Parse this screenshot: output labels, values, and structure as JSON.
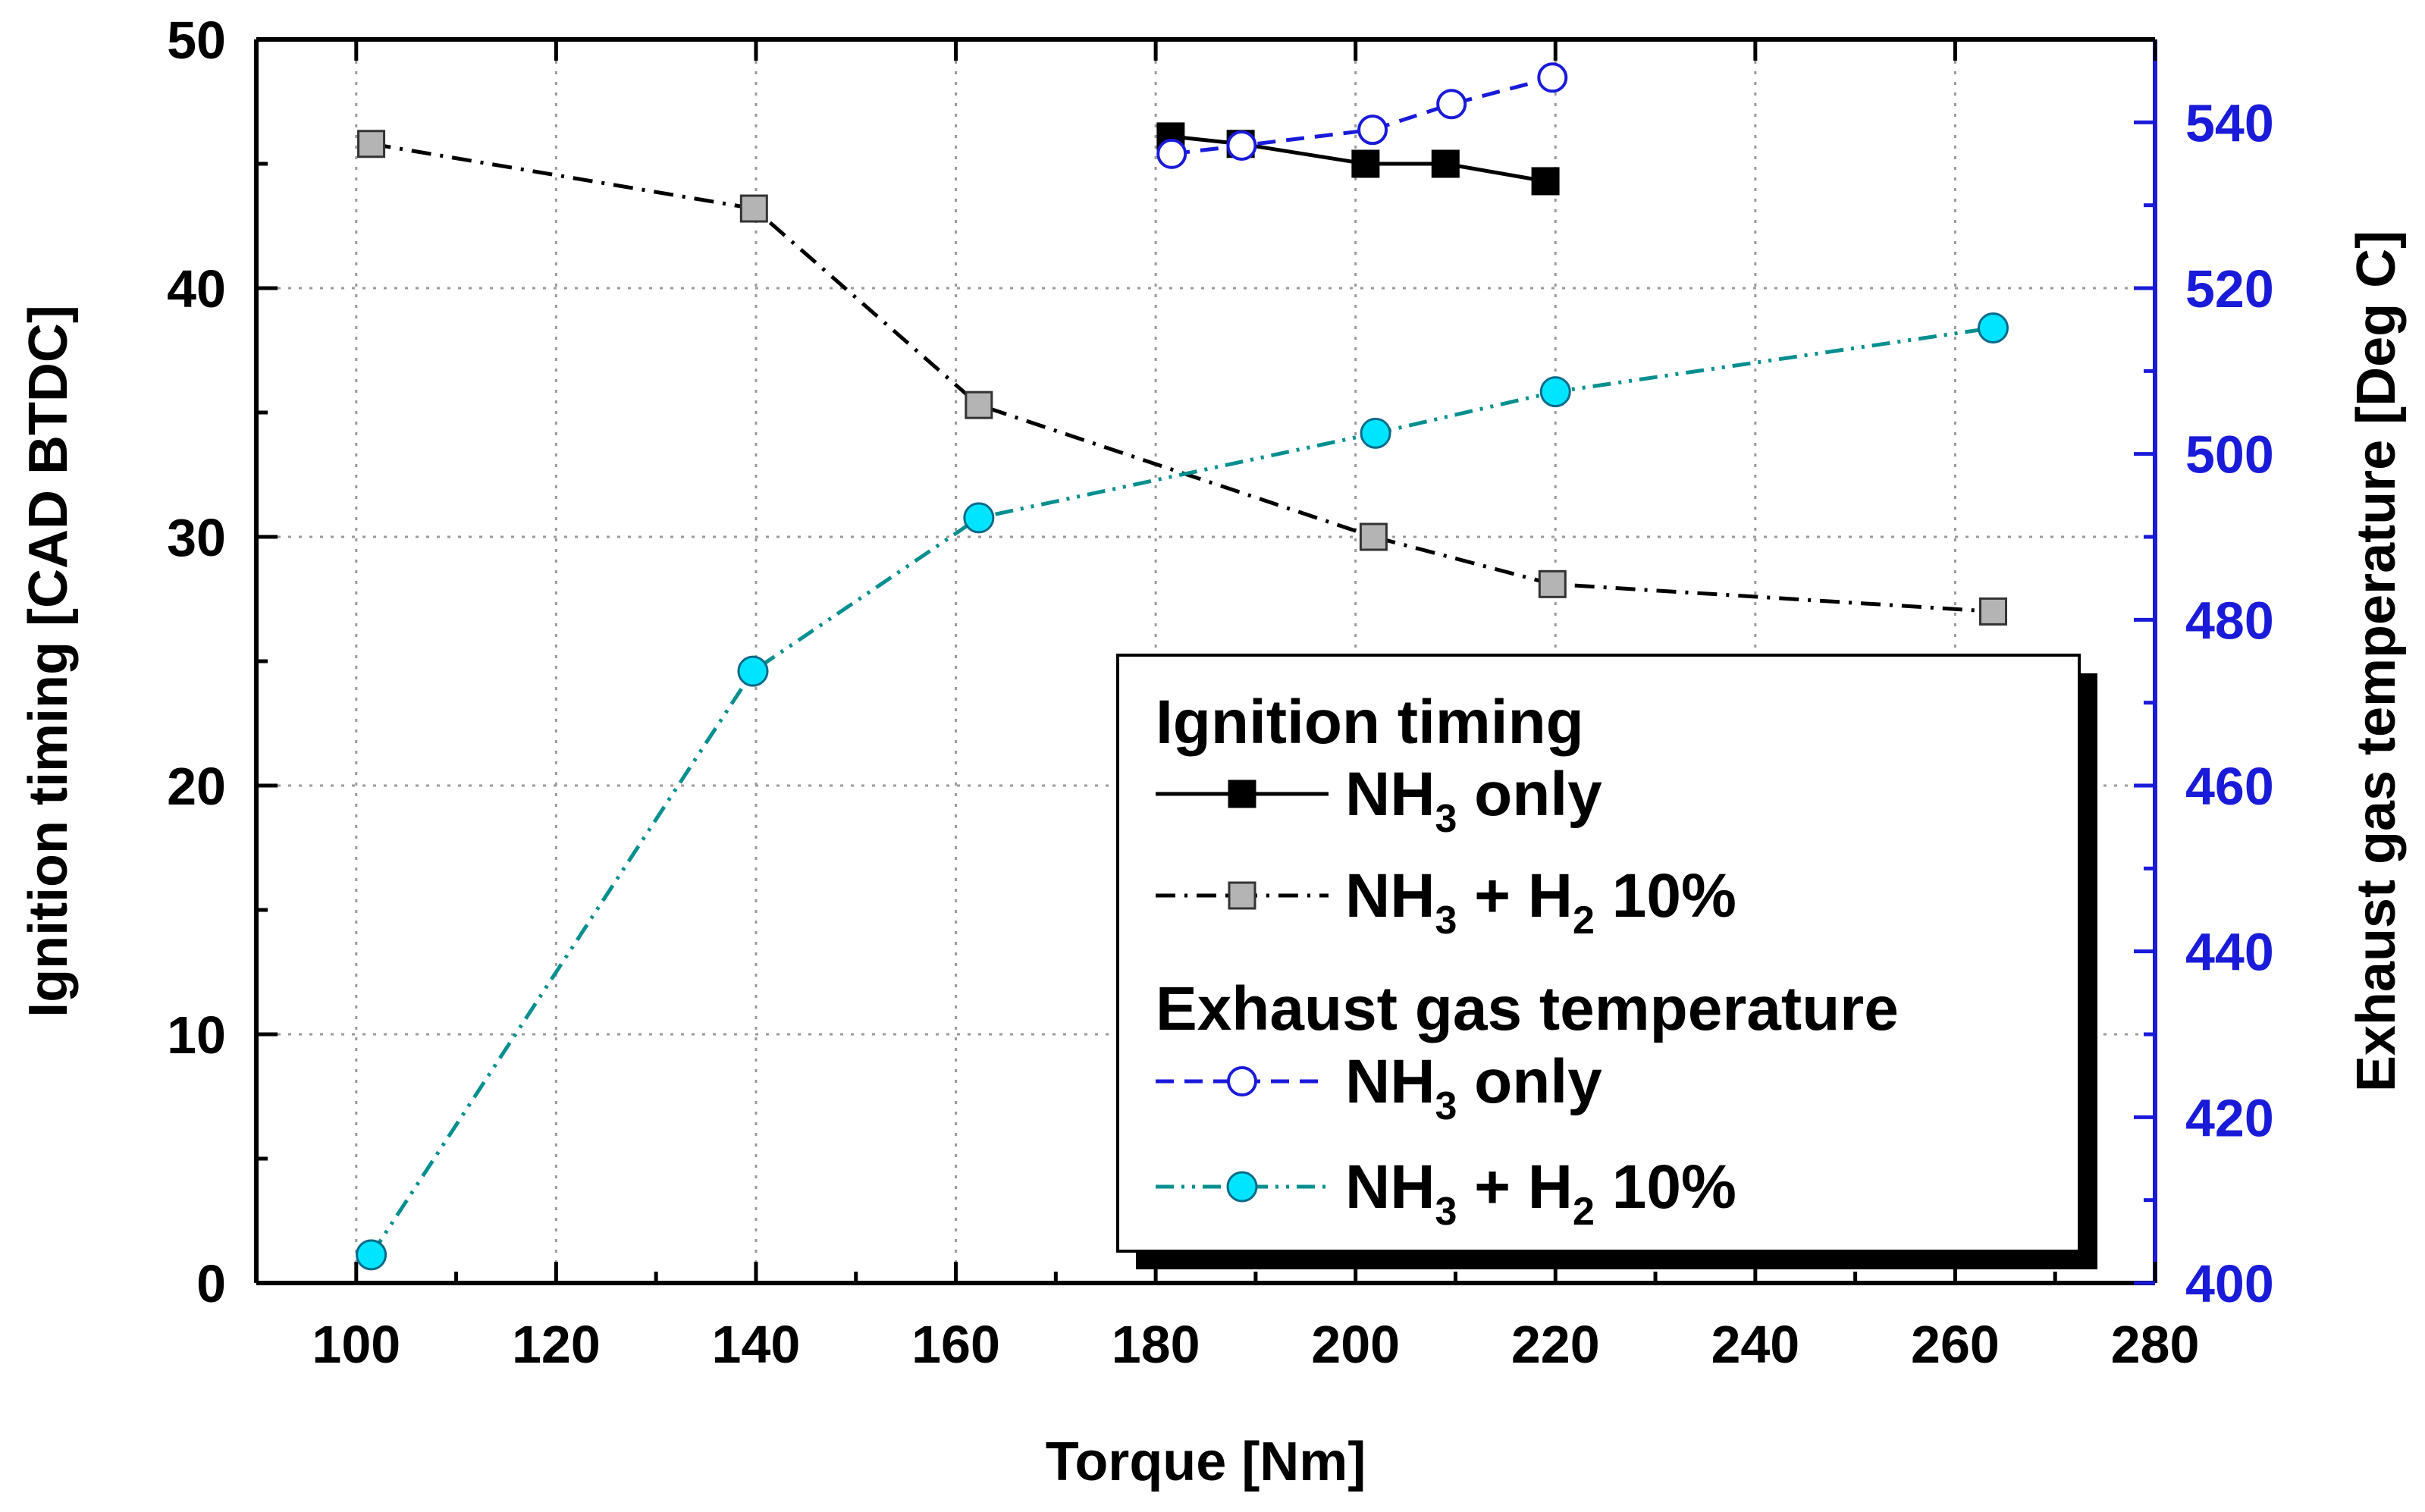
{
  "chart_data": {
    "type": "line",
    "title": "",
    "xlabel": "Torque [Nm]",
    "ylabel_left": "Ignition timing [CAD BTDC]",
    "ylabel_right": "Exhaust gas temperature [Deg C]",
    "xlim": [
      90,
      280
    ],
    "ylim_left": [
      0,
      50
    ],
    "ylim_right": [
      400,
      550
    ],
    "x_ticks": [
      "100",
      "120",
      "140",
      "160",
      "180",
      "200",
      "220",
      "240",
      "260",
      "280"
    ],
    "y_ticks_left": [
      "0",
      "10",
      "20",
      "30",
      "40",
      "50"
    ],
    "y_ticks_right": [
      "400",
      "420",
      "440",
      "460",
      "480",
      "500",
      "520",
      "540"
    ],
    "grid": true,
    "colors": {
      "ignition": "#000000",
      "marker_gray": "#b4b4b4",
      "egt_blue": "#1a1ad9",
      "egt_teal": "#078f8f",
      "marker_cyan": "#00e5ff",
      "right_axis": "#1a1ad9"
    },
    "series": [
      {
        "name": "NH3 only",
        "group": "Ignition timing",
        "axis": "left",
        "line": "solid",
        "marker": "filled-square",
        "x": [
          181.5,
          188.5,
          201,
          209,
          219
        ],
        "values": [
          46.1,
          45.8,
          45.0,
          45.0,
          44.3
        ]
      },
      {
        "name": "NH3 + H2 10%",
        "group": "Ignition timing",
        "axis": "left",
        "line": "dash-dot",
        "marker": "gray-square",
        "x": [
          101.5,
          139.8,
          162.3,
          201.8,
          219.7,
          263.8
        ],
        "values": [
          45.8,
          43.2,
          35.3,
          30.0,
          28.1,
          27.0
        ]
      },
      {
        "name": "NH3 only",
        "group": "Exhaust gas temperature",
        "axis": "right",
        "line": "dashed",
        "marker": "open-circle",
        "x": [
          181.6,
          188.6,
          201.7,
          209.6,
          219.7
        ],
        "values": [
          536.2,
          537.2,
          539.1,
          542.2,
          545.4
        ]
      },
      {
        "name": "NH3 + H2 10%",
        "group": "Exhaust gas temperature",
        "axis": "right",
        "line": "dash-dot-dot",
        "marker": "cyan-circle",
        "x": [
          101.5,
          139.7,
          162.3,
          202.0,
          220.0,
          263.8
        ],
        "values": [
          403.4,
          473.8,
          492.3,
          502.5,
          507.5,
          515.2
        ]
      }
    ],
    "legend": {
      "placement": "bottom-right",
      "group1_title": "Ignition timing",
      "group2_title": "Exhaust gas temperature",
      "entries": [
        {
          "main": "NH",
          "sub": "3",
          "mid": " only",
          "sub2": "",
          "tail": ""
        },
        {
          "main": "NH",
          "sub": "3",
          "mid": " + H",
          "sub2": "2",
          "tail": " 10%"
        },
        {
          "main": "NH",
          "sub": "3",
          "mid": " only",
          "sub2": "",
          "tail": ""
        },
        {
          "main": "NH",
          "sub": "3",
          "mid": " + H",
          "sub2": "2",
          "tail": " 10%"
        }
      ]
    }
  }
}
